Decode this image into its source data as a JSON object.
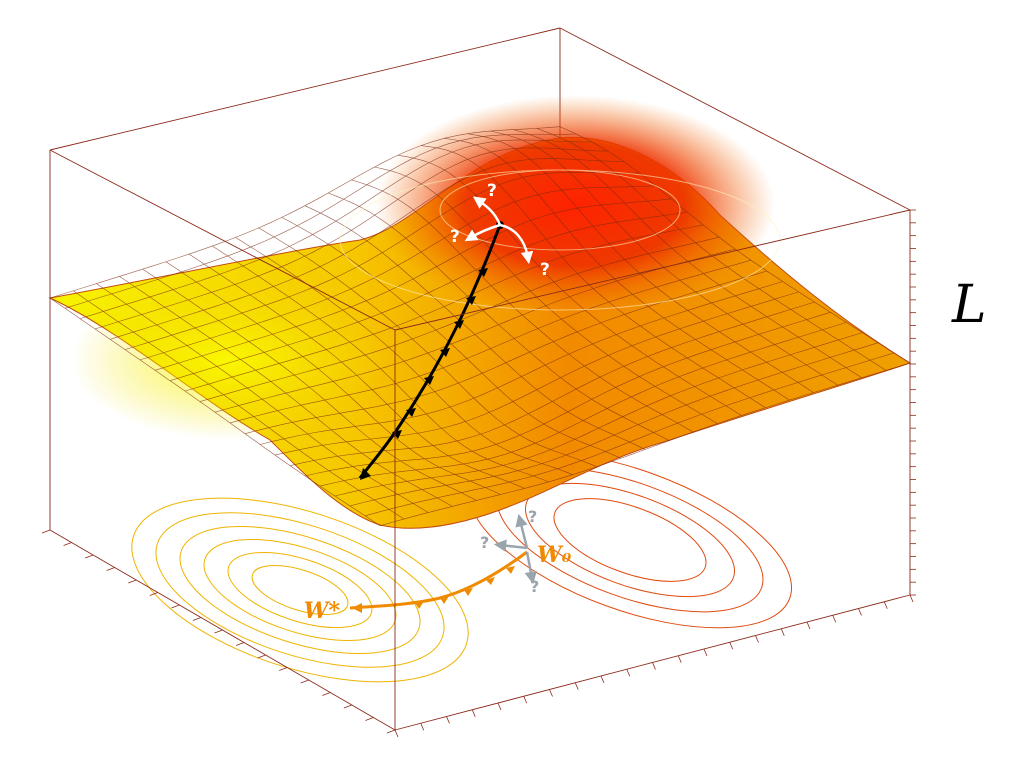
{
  "labels": {
    "axis_label": "L",
    "start_label": "W₀",
    "end_label": "W*",
    "question_mark": "?"
  },
  "colors": {
    "surface_low": "#f5f500",
    "surface_mid": "#f5a000",
    "surface_high": "#e81800",
    "mesh": "#7a2a10",
    "box": "#8b2a1a",
    "contour_low": "#f0b200",
    "contour_high": "#d82800",
    "path_surface": "#000000",
    "path_contour": "#f08a00",
    "hint_surface": "#ffffff",
    "hint_contour": "#9aa4ac"
  },
  "icons": {
    "axis_label": "script-l-glyph",
    "path_markers": "arrow-head-icon"
  }
}
